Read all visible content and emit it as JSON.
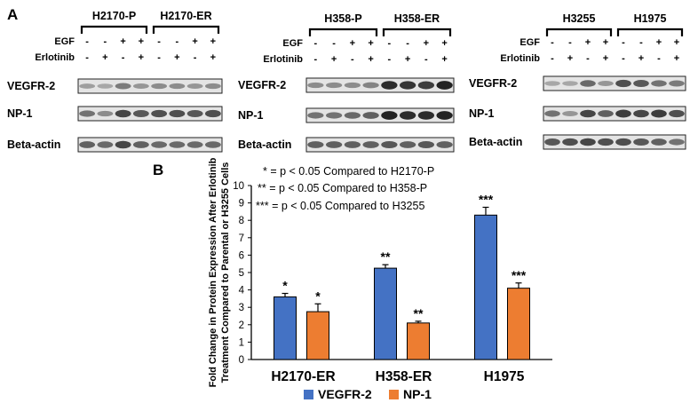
{
  "panel_a": {
    "label": "A",
    "conditions": {
      "egf_label": "EGF",
      "erlotinib_label": "Erlotinib",
      "egf_signs": [
        "-",
        "-",
        "+",
        "+"
      ],
      "erlotinib_signs": [
        "-",
        "+",
        "-",
        "+"
      ]
    },
    "row_labels": [
      "VEGFR-2",
      "NP-1",
      "Beta-actin"
    ],
    "groups": [
      {
        "lines": [
          "H2170-P",
          "H2170-ER"
        ]
      },
      {
        "lines": [
          "H358-P",
          "H358-ER"
        ]
      },
      {
        "lines": [
          "H3255",
          "H1975"
        ]
      }
    ]
  },
  "panel_b": {
    "label": "B",
    "annotations": [
      "* = p < 0.05 Compared to H2170-P",
      "** = p < 0.05 Compared to H358-P",
      "*** = p < 0.05 Compared to H3255"
    ]
  },
  "chart_data": {
    "type": "bar",
    "categories": [
      "H2170-ER",
      "H358-ER",
      "H1975"
    ],
    "series": [
      {
        "name": "VEGFR-2",
        "color": "#4472C4",
        "values": [
          3.6,
          5.25,
          8.3
        ],
        "errors": [
          0.2,
          0.2,
          0.45
        ],
        "significance": [
          "*",
          "**",
          "***"
        ]
      },
      {
        "name": "NP-1",
        "color": "#ED7D31",
        "values": [
          2.75,
          2.1,
          4.1
        ],
        "errors": [
          0.45,
          0.1,
          0.3
        ],
        "significance": [
          "*",
          "**",
          "***"
        ]
      }
    ],
    "ylabel_lines": [
      "Fold Change in Protein Expression After Erlotinib",
      "Treatment  Compared to Parental or H3255 Cells"
    ],
    "ylim": [
      0,
      10
    ],
    "yticks": [
      0,
      1,
      2,
      3,
      4,
      5,
      6,
      7,
      8,
      9,
      10
    ],
    "legend_position": "bottom",
    "grid": false
  }
}
